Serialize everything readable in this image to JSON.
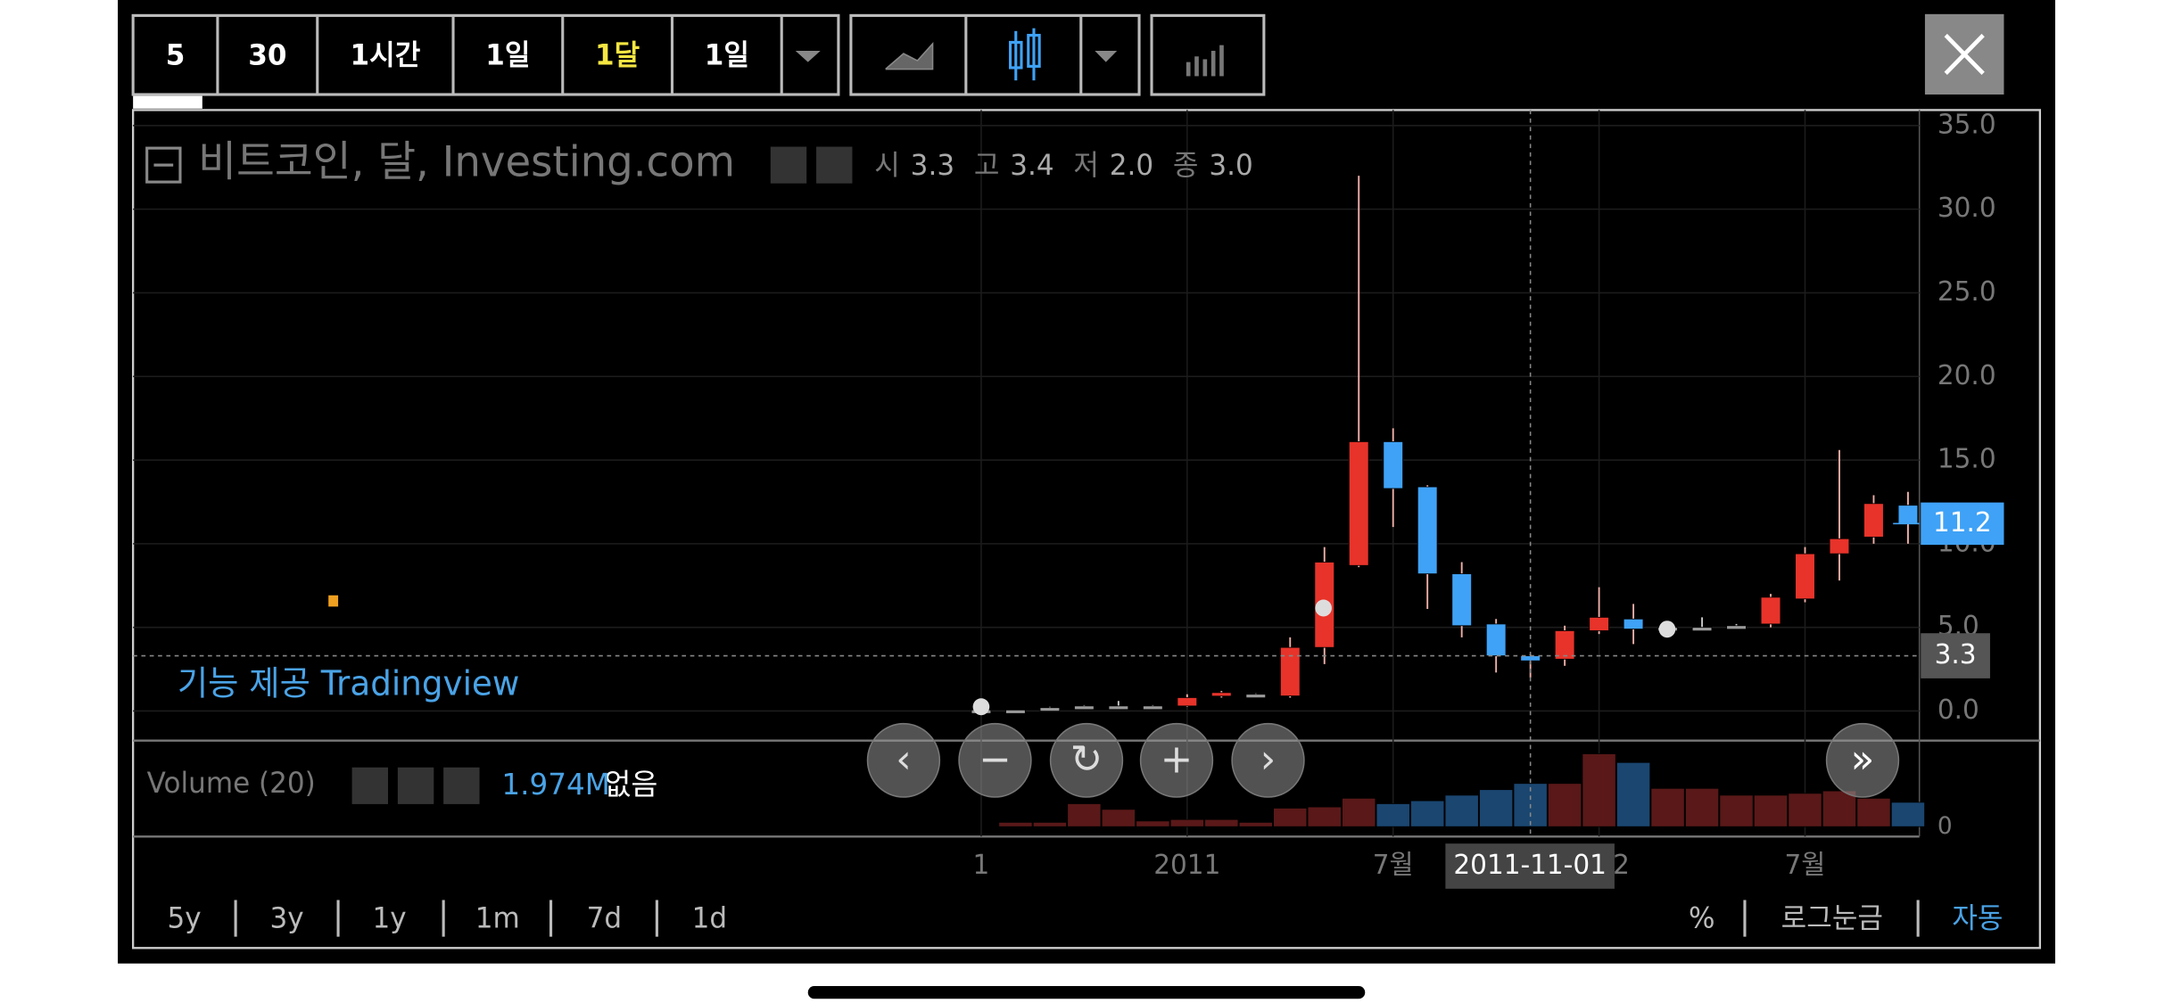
{
  "toolbar": {
    "intervals": [
      "5",
      "30",
      "1시간",
      "1일",
      "1달",
      "1일"
    ]
  },
  "chart_data": {
    "type": "candlestick",
    "title": "비트코인, 달, Investing.com",
    "ohlc_legend": [
      {
        "label": "시",
        "value": "3.3"
      },
      {
        "label": "고",
        "value": "3.4"
      },
      {
        "label": "저",
        "value": "2.0"
      },
      {
        "label": "종",
        "value": "3.0"
      }
    ],
    "categories": [
      "1",
      null,
      null,
      null,
      null,
      null,
      "2011",
      null,
      null,
      null,
      null,
      null,
      "7월",
      null,
      null,
      null,
      null,
      null,
      "2",
      null,
      null,
      null,
      null,
      null,
      "7월",
      null,
      null,
      null
    ],
    "crosshair": {
      "date": "2011-11-01",
      "price": 3.3
    },
    "series": [
      {
        "open": [
          0.06,
          0.06,
          0.2,
          0.3,
          0.3,
          0.3,
          0.3,
          0.9,
          1.0,
          0.9,
          3.8,
          8.7,
          16.1,
          13.4,
          8.2,
          5.2,
          3.3,
          3.1,
          4.8,
          5.5,
          4.9,
          5.0,
          5.0,
          5.2,
          6.7,
          9.4,
          10.4,
          12.3
        ],
        "high": [
          0.07,
          0.07,
          0.25,
          0.35,
          0.6,
          0.35,
          1.0,
          1.2,
          1.05,
          4.4,
          9.8,
          32.0,
          16.9,
          13.5,
          8.9,
          5.5,
          3.4,
          5.1,
          7.4,
          6.4,
          5.2,
          5.6,
          5.2,
          7.0,
          9.8,
          15.6,
          12.9,
          13.1
        ],
        "low": [
          0.05,
          0.05,
          0.15,
          0.25,
          0.25,
          0.25,
          0.25,
          0.8,
          0.95,
          0.8,
          2.8,
          8.6,
          11.0,
          6.1,
          4.4,
          2.3,
          2.0,
          2.7,
          4.6,
          4.0,
          4.7,
          4.8,
          4.9,
          5.0,
          6.5,
          7.8,
          10.0,
          10.0
        ],
        "close": [
          0.06,
          0.06,
          0.2,
          0.3,
          0.3,
          0.3,
          0.8,
          1.1,
          1.0,
          3.8,
          8.9,
          16.1,
          13.3,
          8.2,
          5.1,
          3.3,
          3.0,
          4.8,
          5.6,
          4.9,
          5.0,
          5.0,
          5.1,
          6.8,
          9.4,
          10.3,
          12.4,
          11.2
        ]
      }
    ],
    "up_color": "#e8332a",
    "down_color": "#3fa2f6",
    "flat_color": "#9a9a9a",
    "ylim": [
      0,
      35
    ],
    "yticks": [
      {
        "value": 0,
        "label": "0.0"
      },
      {
        "value": 5,
        "label": "5.0"
      },
      {
        "value": 10,
        "label": "10.0"
      },
      {
        "value": 15,
        "label": "15.0"
      },
      {
        "value": 20,
        "label": "20.0"
      },
      {
        "value": 25,
        "label": "25.0"
      },
      {
        "value": 30,
        "label": "30.0"
      },
      {
        "value": 35,
        "label": "35.0"
      }
    ],
    "grid": true,
    "watermark": "기능 제공 Tradingview",
    "volume": {
      "name": "Volume (20)",
      "status": "없음",
      "values": [
        0,
        0.35,
        0.35,
        1.86,
        1.4,
        0.46,
        0.58,
        0.58,
        0.35,
        1.5,
        1.6,
        2.3,
        1.86,
        2.1,
        2.55,
        3.0,
        3.5,
        3.5,
        5.9,
        5.2,
        3.1,
        3.1,
        2.55,
        2.55,
        2.7,
        2.9,
        2.3,
        1.974
      ],
      "value_labels": [
        null,
        null,
        null,
        null,
        null,
        null,
        null,
        null,
        null,
        null,
        null,
        null,
        null,
        null,
        null,
        null,
        null,
        null,
        null,
        null,
        null,
        null,
        null,
        null,
        null,
        null,
        null,
        "1.974M"
      ],
      "ylim": [
        0,
        6.4
      ],
      "yticks": [
        0
      ]
    }
  },
  "bottom_bar": {
    "ranges": [
      "5y",
      "3y",
      "1y",
      "1m",
      "7d",
      "1d"
    ],
    "options": [
      "%",
      "로그눈금",
      "자동"
    ]
  }
}
